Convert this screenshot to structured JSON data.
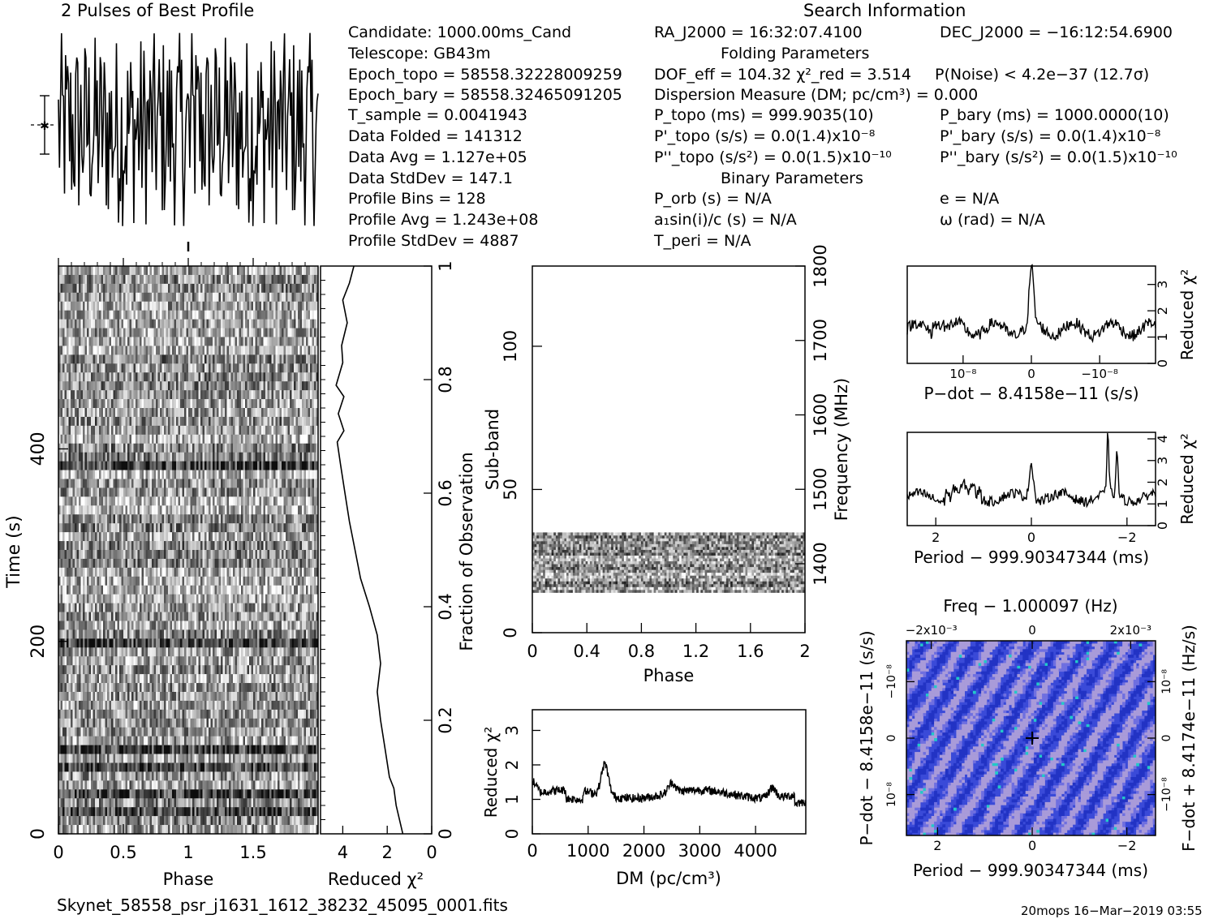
{
  "header": {
    "profile_title": "2 Pulses of Best Profile",
    "search_title": "Search Information",
    "folding_title": "Folding Parameters",
    "binary_title": "Binary Parameters"
  },
  "info_left": [
    "Candidate:  1000.00ms_Cand",
    "Telescope:  GB43m",
    "Epoch_topo = 58558.32228009259",
    "Epoch_bary = 58558.32465091205",
    "T_sample       =  0.0041943",
    "Data Folded     =  141312",
    "Data Avg         =  1.127e+05",
    "Data StdDev    =  147.1",
    "Profile Bins     =  128",
    "Profile Avg       =  1.243e+08",
    "Profile StdDev  =  4887"
  ],
  "info_mid": {
    "ra": "RA_J2000 = 16:32:07.4100",
    "dof": "DOF_eff = 104.32  χ²_red = 3.514",
    "dm": "Dispersion Measure (DM; pc/cm³) = 0.000",
    "p_topo": "P_topo (ms) =  999.9035(10)",
    "pd_topo": "P'_topo (s/s) = 0.0(1.4)x10⁻⁸",
    "pdd_topo": "P''_topo (s/s²) = 0.0(1.5)x10⁻¹⁰",
    "p_orb": "P_orb (s) = N/A",
    "a1": "a₁sin(i)/c (s) = N/A",
    "t_peri": "T_peri = N/A"
  },
  "info_right": {
    "dec": "DEC_J2000 = −16:12:54.6900",
    "p_noise": "P(Noise) < 4.2e−37   (12.7σ)",
    "p_bary": "P_bary (ms) =  1000.0000(10)",
    "pd_bary": "P'_bary (s/s) = 0.0(1.4)x10⁻⁸",
    "pdd_bary": "P''_bary (s/s²) = 0.0(1.5)x10⁻¹⁰",
    "e": "e = N/A",
    "omega": "ω (rad) = N/A"
  },
  "footer": {
    "filename": "Skynet_58558_psr_j1631_1612_38232_45095_0001.fits",
    "stamp": "20mops 16−Mar−2019 03:55"
  },
  "colors": {
    "ink": "#000000",
    "grid_dark": "#1a1a1a",
    "map_blue": "#3a4ad8",
    "map_light": "#a99bd9",
    "map_cyan": "#22c9c9"
  },
  "chart_data": [
    {
      "id": "profile",
      "type": "line",
      "title": "2 Pulses of Best Profile",
      "xlabel": "",
      "ylabel": "",
      "xlim": [
        0,
        2
      ],
      "bins": 128,
      "pulses": 2,
      "note": "noise-like profile, no tick labels shown"
    },
    {
      "id": "time-phase",
      "type": "heatmap",
      "xlabel": "Phase",
      "ylabel": "Time (s)",
      "xlim": [
        0,
        2
      ],
      "ylim": [
        0,
        590
      ],
      "x_ticks": [
        "0",
        "0.5",
        "1",
        "1.5"
      ],
      "y_ticks": [
        "0",
        "200",
        "400"
      ],
      "right_label": "Fraction of Observation",
      "right_ticks": [
        "0",
        "0.2",
        "0.4",
        "0.6",
        "0.8",
        "1"
      ],
      "dark_rows_s": [
        20,
        40,
        70,
        85,
        200,
        380
      ]
    },
    {
      "id": "chi2-vs-time",
      "type": "line",
      "xlabel": "Reduced χ²",
      "x_ticks": [
        "4",
        "2",
        "0"
      ],
      "xlim": [
        5,
        0
      ],
      "points": [
        {
          "frac": 0.0,
          "chi": 1.3
        },
        {
          "frac": 0.05,
          "chi": 1.6
        },
        {
          "frac": 0.08,
          "chi": 1.7
        },
        {
          "frac": 0.1,
          "chi": 1.9
        },
        {
          "frac": 0.15,
          "chi": 2.1
        },
        {
          "frac": 0.2,
          "chi": 2.3
        },
        {
          "frac": 0.25,
          "chi": 2.45
        },
        {
          "frac": 0.3,
          "chi": 2.3
        },
        {
          "frac": 0.35,
          "chi": 2.45
        },
        {
          "frac": 0.4,
          "chi": 2.8
        },
        {
          "frac": 0.45,
          "chi": 3.2
        },
        {
          "frac": 0.5,
          "chi": 3.45
        },
        {
          "frac": 0.55,
          "chi": 3.7
        },
        {
          "frac": 0.6,
          "chi": 3.9
        },
        {
          "frac": 0.65,
          "chi": 4.1
        },
        {
          "frac": 0.69,
          "chi": 4.25
        },
        {
          "frac": 0.71,
          "chi": 3.95
        },
        {
          "frac": 0.74,
          "chi": 4.2
        },
        {
          "frac": 0.77,
          "chi": 3.95
        },
        {
          "frac": 0.79,
          "chi": 4.3
        },
        {
          "frac": 0.83,
          "chi": 4.0
        },
        {
          "frac": 0.86,
          "chi": 4.05
        },
        {
          "frac": 0.9,
          "chi": 3.8
        },
        {
          "frac": 0.94,
          "chi": 4.0
        },
        {
          "frac": 0.97,
          "chi": 3.7
        },
        {
          "frac": 1.0,
          "chi": 3.5
        }
      ]
    },
    {
      "id": "subband-phase",
      "type": "heatmap",
      "xlabel": "Phase",
      "ylabel": "Sub-band",
      "xlim": [
        0,
        2
      ],
      "ylim": [
        0,
        128
      ],
      "x_ticks": [
        "0",
        "0.4",
        "0.8",
        "1.2",
        "1.6",
        "2"
      ],
      "y_ticks": [
        "0",
        "50",
        "100"
      ],
      "right_label": "Frequency (MHz)",
      "right_ticks": [
        "1400",
        "1500",
        "1600",
        "1700",
        "1800"
      ],
      "filled_subbands": [
        14,
        35
      ]
    },
    {
      "id": "dm-chi2",
      "type": "line",
      "xlabel": "DM (pc/cm³)",
      "ylabel": "Reduced χ²",
      "xlim": [
        0,
        4900
      ],
      "ylim": [
        0,
        3.6
      ],
      "x_ticks": [
        "0",
        "1000",
        "2000",
        "3000",
        "4000"
      ],
      "y_ticks": [
        "0",
        "1",
        "2",
        "3"
      ],
      "peaks": [
        {
          "x": 1300,
          "y": 2.1
        },
        {
          "x": 2500,
          "y": 1.5
        },
        {
          "x": 4300,
          "y": 1.5
        }
      ]
    },
    {
      "id": "pdot-chi2",
      "type": "line",
      "xlabel": "P−dot − 8.4158e−11 (s/s)",
      "ylabel": "Reduced χ²",
      "xlim": [
        -1.6e-08,
        1.6e-08
      ],
      "ylim": [
        0,
        3.7
      ],
      "x_ticks": [
        "10⁻⁸",
        "0",
        "−10⁻⁸"
      ],
      "y_ticks": [
        "0",
        "1",
        "2",
        "3"
      ],
      "peak": {
        "x": 0,
        "y": 3.5
      }
    },
    {
      "id": "period-chi2",
      "type": "line",
      "xlabel": "Period − 999.90347344 (ms)",
      "ylabel": "Reduced χ²",
      "xlim": [
        2.6,
        -2.6
      ],
      "ylim": [
        0,
        4.3
      ],
      "x_ticks": [
        "2",
        "0",
        "−2"
      ],
      "y_ticks": [
        "0",
        "1",
        "2",
        "3",
        "4"
      ],
      "peaks": [
        {
          "x": 0,
          "y": 3.0
        },
        {
          "x": -1.6,
          "y": 4.0
        },
        {
          "x": -1.8,
          "y": 3.3
        }
      ]
    },
    {
      "id": "period-pdot-map",
      "type": "heatmap",
      "title": "Freq − 1.000097 (Hz)",
      "xlabel": "Period − 999.90347344 (ms)",
      "ylabel": "P−dot − 8.4158e−11 (s/s)",
      "right_label": "F−dot + 8.4174e−11 (Hz/s)",
      "x_ticks": [
        "2",
        "0",
        "−2"
      ],
      "top_ticks": [
        "−2x10⁻³",
        "0",
        "2x10⁻³"
      ],
      "y_ticks": [
        "10⁻⁸",
        "0",
        "−10⁻⁸"
      ],
      "right_ticks": [
        "−10⁻⁸",
        "0",
        "10⁻⁸"
      ],
      "best": {
        "x": 0,
        "y": 0
      }
    }
  ]
}
